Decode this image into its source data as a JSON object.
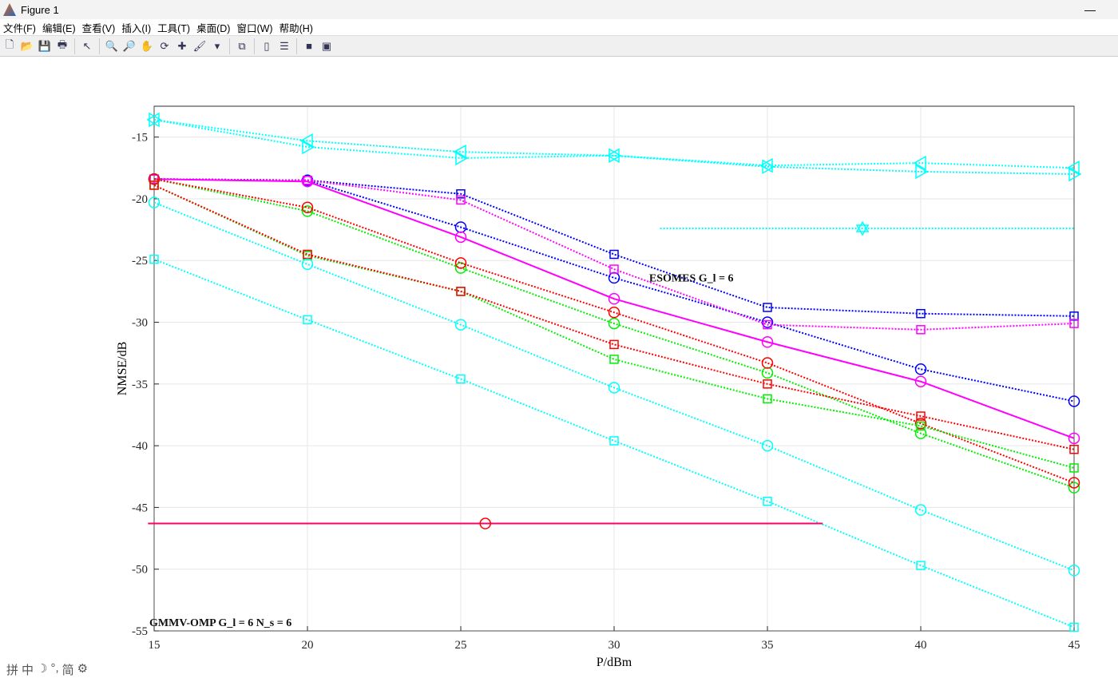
{
  "window": {
    "title": "Figure 1",
    "minimize": "—"
  },
  "menu": [
    "文件(F)",
    "编辑(E)",
    "查看(V)",
    "插入(I)",
    "工具(T)",
    "桌面(D)",
    "窗口(W)",
    "帮助(H)"
  ],
  "toolbar": [
    {
      "name": "new-figure-icon",
      "glyph": "🗋"
    },
    {
      "name": "open-icon",
      "glyph": "📂"
    },
    {
      "name": "save-icon",
      "glyph": "💾"
    },
    {
      "name": "print-icon",
      "glyph": "🖶"
    },
    {
      "sep": true
    },
    {
      "name": "select-arrow-icon",
      "glyph": "↖"
    },
    {
      "sep": true
    },
    {
      "name": "zoom-in-icon",
      "glyph": "🔍"
    },
    {
      "name": "zoom-out-icon",
      "glyph": "🔎"
    },
    {
      "name": "pan-icon",
      "glyph": "✋"
    },
    {
      "name": "rotate-3d-icon",
      "glyph": "⟳"
    },
    {
      "name": "data-cursor-icon",
      "glyph": "✚"
    },
    {
      "name": "brush-icon",
      "glyph": "🖌"
    },
    {
      "name": "brush-dropdown-icon",
      "glyph": "▾"
    },
    {
      "sep": true
    },
    {
      "name": "link-plot-icon",
      "glyph": "⧉"
    },
    {
      "sep": true
    },
    {
      "name": "colorbar-icon",
      "glyph": "▯"
    },
    {
      "name": "legend-icon",
      "glyph": "☰"
    },
    {
      "sep": true
    },
    {
      "name": "hide-plot-tools-icon",
      "glyph": "■"
    },
    {
      "name": "show-plot-tools-icon",
      "glyph": "▣"
    }
  ],
  "ime": [
    "拼",
    "中",
    "☽",
    "°,",
    "简",
    "⚙"
  ],
  "chart_data": {
    "type": "line",
    "xlabel": "P/dBm",
    "ylabel": "NMSE/dB",
    "xlim": [
      15,
      45
    ],
    "ylim": [
      -55,
      -12.5
    ],
    "xticks": [
      15,
      20,
      25,
      30,
      35,
      40,
      45
    ],
    "yticks": [
      -15,
      -20,
      -25,
      -30,
      -35,
      -40,
      -45,
      -50,
      -55
    ],
    "grid": true,
    "x": [
      15,
      20,
      25,
      30,
      35,
      40,
      45
    ],
    "series": [
      {
        "name": "cyan-triangle-left",
        "color": "#00ffff",
        "marker": "tri-left",
        "dash": true,
        "values": [
          -13.6,
          -15.3,
          -16.2,
          -16.5,
          -17.3,
          -17.1,
          -17.5
        ]
      },
      {
        "name": "cyan-triangle-right",
        "color": "#00ffff",
        "marker": "tri-right",
        "dash": true,
        "values": [
          -13.6,
          -15.8,
          -16.7,
          -16.5,
          -17.4,
          -17.8,
          -18.0
        ]
      },
      {
        "name": "blue-square",
        "color": "#0000ff",
        "marker": "square",
        "dash": true,
        "values": [
          -18.4,
          -18.5,
          -19.6,
          -24.5,
          -28.8,
          -29.3,
          -29.5
        ]
      },
      {
        "name": "blue-circle",
        "color": "#0000ff",
        "marker": "circle",
        "dash": true,
        "values": [
          -18.4,
          -18.5,
          -22.3,
          -26.4,
          -30.0,
          -33.8,
          -36.4
        ]
      },
      {
        "name": "magenta-square",
        "color": "#ff00ff",
        "marker": "square",
        "dash": true,
        "values": [
          -18.4,
          -18.5,
          -20.1,
          -25.7,
          -30.2,
          -30.6,
          -30.1
        ]
      },
      {
        "name": "magenta-circle",
        "color": "#ff00ff",
        "marker": "circle",
        "dash": false,
        "values": [
          -18.4,
          -18.6,
          -23.1,
          -28.1,
          -31.6,
          -34.8,
          -39.4
        ]
      },
      {
        "name": "green-circle",
        "color": "#00ee00",
        "marker": "circle",
        "dash": true,
        "values": [
          -18.4,
          -21.0,
          -25.6,
          -30.1,
          -34.1,
          -39.0,
          -43.4
        ]
      },
      {
        "name": "red-circle",
        "color": "#ff0000",
        "marker": "circle",
        "dash": true,
        "values": [
          -18.4,
          -20.7,
          -25.2,
          -29.2,
          -33.3,
          -38.2,
          -43.0
        ]
      },
      {
        "name": "green-square",
        "color": "#00ee00",
        "marker": "square",
        "dash": true,
        "values": [
          -18.9,
          -24.6,
          -27.5,
          -33.0,
          -36.2,
          -38.4,
          -41.8
        ]
      },
      {
        "name": "red-square",
        "color": "#ff0000",
        "marker": "square",
        "dash": true,
        "values": [
          -18.9,
          -24.5,
          -27.5,
          -31.8,
          -35.0,
          -37.6,
          -40.3
        ]
      },
      {
        "name": "cyan-circle",
        "color": "#00ffff",
        "marker": "circle",
        "dash": true,
        "values": [
          -20.3,
          -25.3,
          -30.2,
          -35.3,
          -40.0,
          -45.2,
          -50.1
        ]
      },
      {
        "name": "cyan-square",
        "color": "#00ffff",
        "marker": "square",
        "dash": true,
        "values": [
          -24.9,
          -29.8,
          -34.6,
          -39.6,
          -44.5,
          -49.7,
          -54.7
        ]
      }
    ],
    "annotation_lines": [
      {
        "name": "cyan-hexagram-line",
        "color": "#00ffff",
        "dash": true,
        "x": [
          31.5,
          45
        ],
        "y": -22.4,
        "marker": "hexagram",
        "marker_x": 38.1
      },
      {
        "name": "red-magenta-line",
        "color": "#ff0066",
        "dash": false,
        "x": [
          14.8,
          36.8
        ],
        "y": -46.3,
        "marker": "circle",
        "marker_x": 25.8
      }
    ],
    "annotations": [
      {
        "text": "GMMV-OMP G_l = 6 N_s = 6",
        "x": 15,
        "y": -54.6
      },
      {
        "text": "ESOMES G_l = 6",
        "x": 31.3,
        "y": -26.7
      }
    ]
  }
}
